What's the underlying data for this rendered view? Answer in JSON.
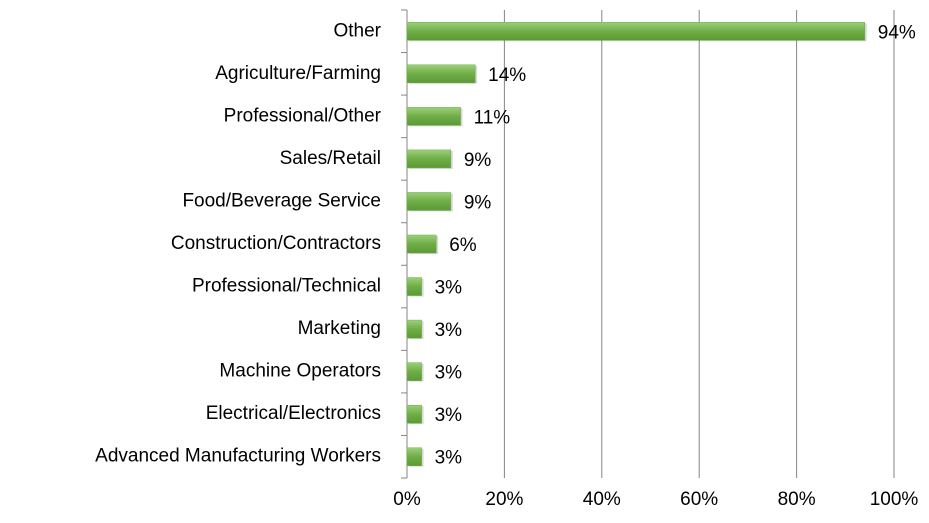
{
  "chart_data": {
    "type": "bar",
    "orientation": "horizontal",
    "categories": [
      "Other",
      "Agriculture/Farming",
      "Professional/Other",
      "Sales/Retail",
      "Food/Beverage Service",
      "Construction/Contractors",
      "Professional/Technical",
      "Marketing",
      "Machine Operators",
      "Electrical/Electronics",
      "Advanced Manufacturing Workers"
    ],
    "values": [
      94,
      14,
      11,
      9,
      9,
      6,
      3,
      3,
      3,
      3,
      3
    ],
    "value_labels": [
      "94%",
      "14%",
      "11%",
      "9%",
      "9%",
      "6%",
      "3%",
      "3%",
      "3%",
      "3%",
      "3%"
    ],
    "color": "#70ad47",
    "xlim": [
      0,
      100
    ],
    "xticks": [
      {
        "value": 0,
        "label": "0%"
      },
      {
        "value": 20,
        "label": "20%"
      },
      {
        "value": 40,
        "label": "40%"
      },
      {
        "value": 60,
        "label": "60%"
      },
      {
        "value": 80,
        "label": "80%"
      },
      {
        "value": 100,
        "label": "100%"
      }
    ],
    "grid": true
  }
}
